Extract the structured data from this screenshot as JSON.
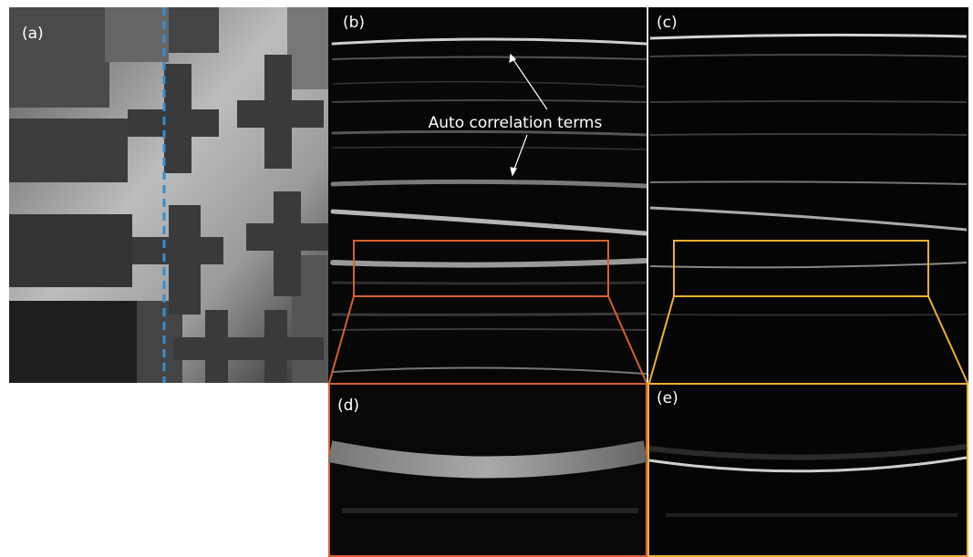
{
  "panels": [
    {
      "label": "(a)"
    },
    {
      "label": "(b)"
    },
    {
      "label": "(c)"
    },
    {
      "label": "(d)"
    },
    {
      "label": "(e)"
    }
  ],
  "annotation": "Auto correlation terms"
}
